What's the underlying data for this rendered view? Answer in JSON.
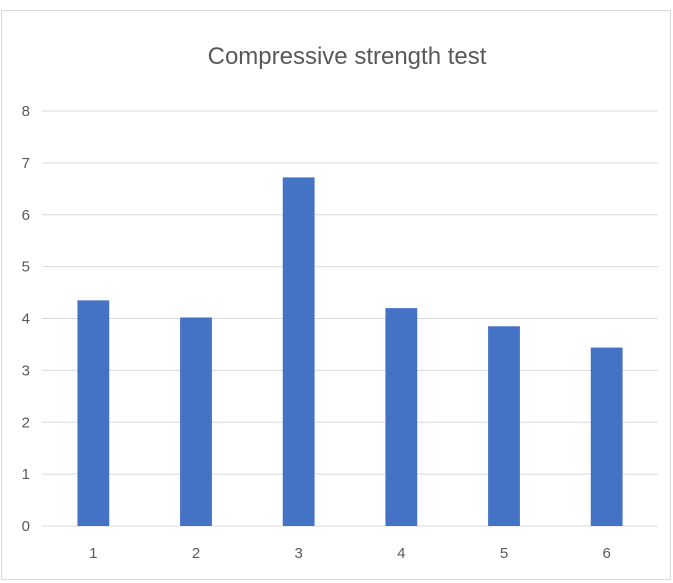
{
  "chart_data": {
    "type": "bar",
    "title": "Compressive strength test",
    "xlabel": "",
    "ylabel": "",
    "categories": [
      "1",
      "2",
      "3",
      "4",
      "5",
      "6"
    ],
    "values": [
      4.35,
      4.02,
      6.72,
      4.2,
      3.85,
      3.44
    ],
    "ylim": [
      0,
      8
    ],
    "yticks": [
      "0",
      "1",
      "2",
      "3",
      "4",
      "5",
      "6",
      "7",
      "8"
    ],
    "grid": true,
    "legend": "none",
    "bar_color": "#4472c4",
    "grid_color": "#d9d9d9",
    "text_color": "#595959"
  }
}
